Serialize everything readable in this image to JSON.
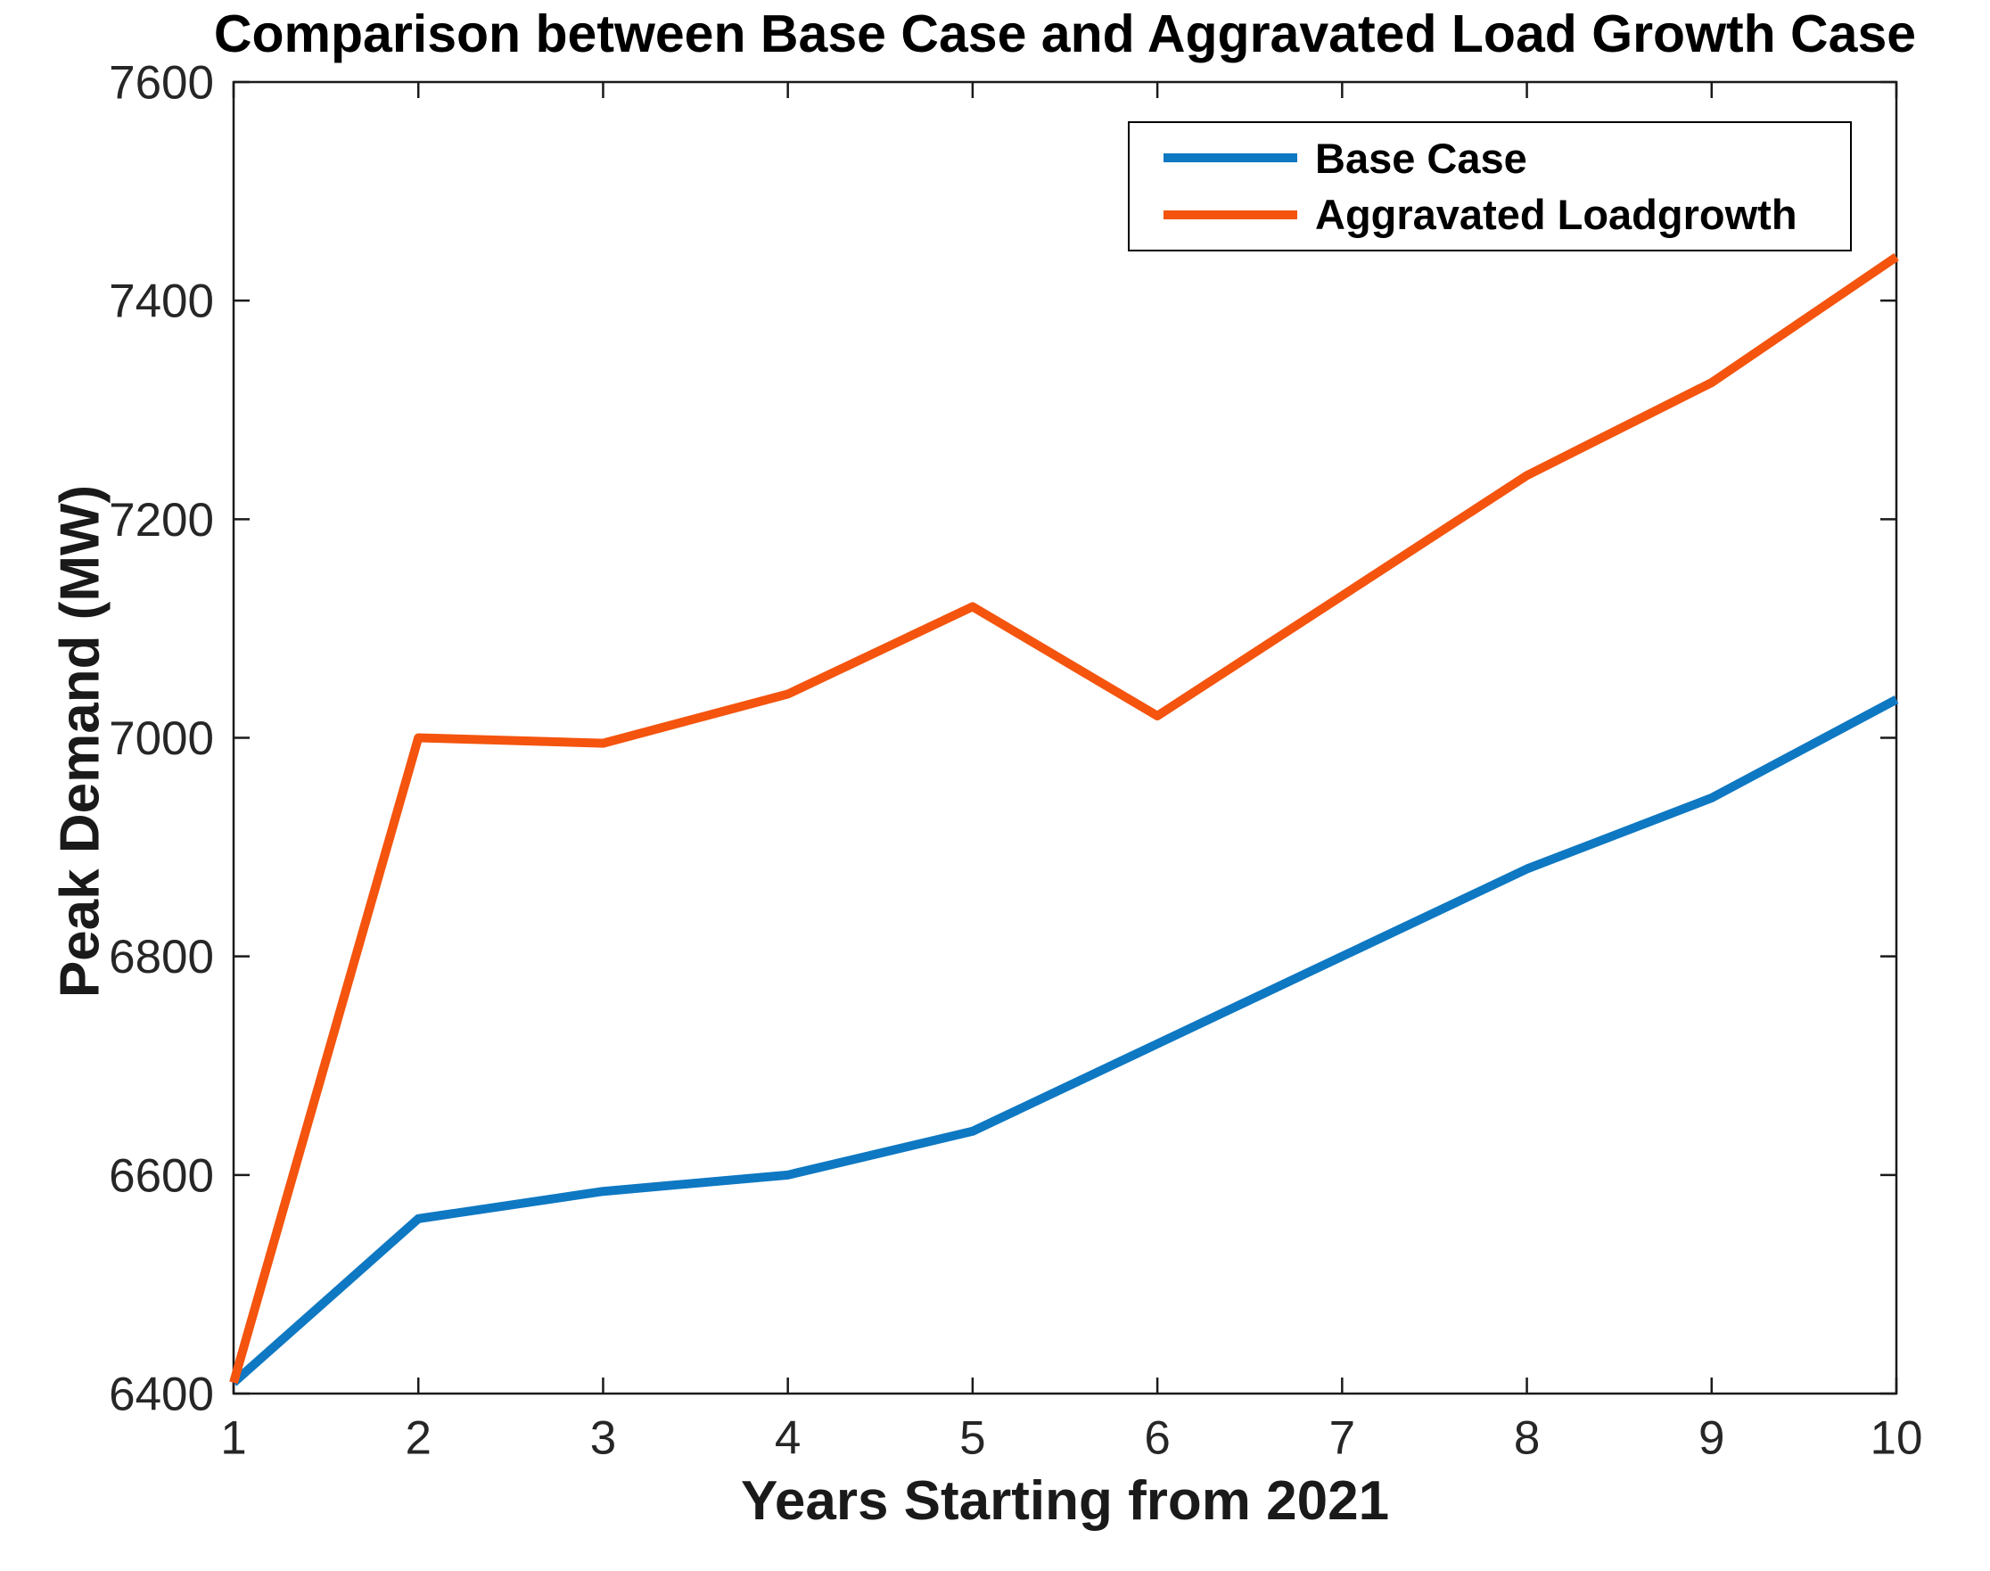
{
  "title": "Comparison between Base Case and Aggravated Load Growth Case",
  "xlabel": "Years Starting from 2021",
  "ylabel": "Peak Demand (MW)",
  "axis_color": "#1a1a1a",
  "tick_label_color": "#262626",
  "legend": {
    "entries": [
      {
        "label": "Base Case",
        "color": "#0E78C2"
      },
      {
        "label": "Aggravated Loadgrowth",
        "color": "#F4540E"
      }
    ]
  },
  "chart_data": {
    "type": "line",
    "title": "Comparison between Base Case and Aggravated Load Growth Case",
    "xlabel": "Years Starting from 2021",
    "ylabel": "Peak Demand (MW)",
    "x": [
      1,
      2,
      3,
      4,
      5,
      6,
      7,
      8,
      9,
      10
    ],
    "series": [
      {
        "name": "Base Case",
        "color": "#0E78C2",
        "values": [
          6410,
          6560,
          6585,
          6600,
          6640,
          6720,
          6800,
          6880,
          6945,
          7035
        ]
      },
      {
        "name": "Aggravated Loadgrowth",
        "color": "#F4540E",
        "values": [
          6410,
          7000,
          6995,
          7040,
          7120,
          7020,
          7130,
          7240,
          7325,
          7440
        ]
      }
    ],
    "xlim": [
      1,
      10
    ],
    "ylim": [
      6400,
      7600
    ],
    "xticks": [
      1,
      2,
      3,
      4,
      5,
      6,
      7,
      8,
      9,
      10
    ],
    "yticks": [
      6400,
      6600,
      6800,
      7000,
      7200,
      7400,
      7600
    ],
    "grid": false,
    "legend_position": "top-right",
    "line_width": 10
  }
}
